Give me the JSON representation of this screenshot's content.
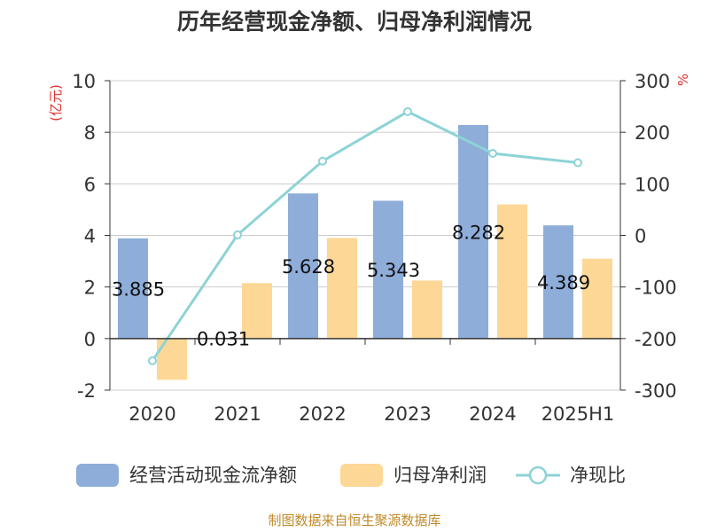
{
  "chart_data": {
    "type": "bar",
    "title": "历年经营现金净额、归母净利润情况",
    "categories": [
      "2020",
      "2021",
      "2022",
      "2023",
      "2024",
      "2025H1"
    ],
    "series": [
      {
        "name": "经营活动现金流净额",
        "type": "bar",
        "axis": "left",
        "color": "#8eadd9",
        "values": [
          3.885,
          0.031,
          5.628,
          5.343,
          8.282,
          4.389
        ],
        "labels": [
          "3.885",
          "0.031",
          "5.628",
          "5.343",
          "8.282",
          "4.389"
        ]
      },
      {
        "name": "归母净利润",
        "type": "bar",
        "axis": "left",
        "color": "#fdd795",
        "values": [
          -1.6,
          2.15,
          3.9,
          2.25,
          5.2,
          3.1
        ]
      },
      {
        "name": "净现比",
        "type": "line",
        "axis": "right",
        "color": "#8dd3d6",
        "values": [
          -243,
          1,
          144,
          240,
          159,
          141
        ]
      }
    ],
    "y_left": {
      "label": "(亿元)",
      "min": -2,
      "max": 10,
      "ticks": [
        "-2",
        "0",
        "2",
        "4",
        "6",
        "8",
        "10"
      ]
    },
    "y_right": {
      "label": "%",
      "min": -300,
      "max": 300,
      "ticks": [
        "-300",
        "-200",
        "-100",
        "0",
        "100",
        "200",
        "300"
      ]
    },
    "grid": true,
    "legend_position": "bottom"
  },
  "footer": {
    "source": "制图数据来自恒生聚源数据库"
  }
}
